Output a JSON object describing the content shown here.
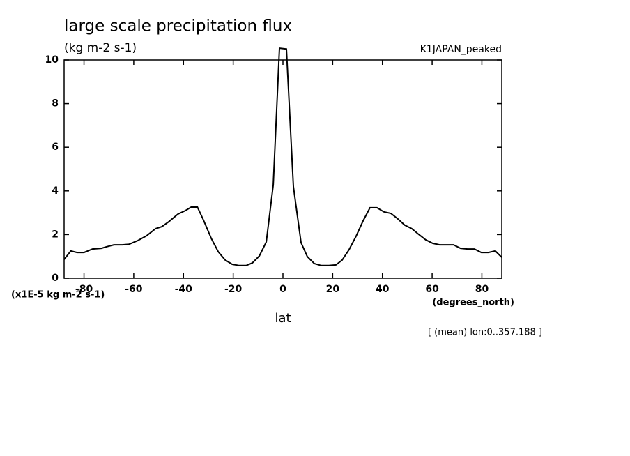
{
  "chart_data": {
    "type": "line",
    "title": "large scale precipitation flux",
    "subtitle": "(kg m-2 s-1)",
    "experiment": "K1JAPAN_peaked",
    "y_unit_label": "(x1E-5 kg m-2 s-1)",
    "x_unit_label": "(degrees_north)",
    "x_label": "lat",
    "annotation": "[ (mean) lon:0..357.188 ]",
    "color": "#000000",
    "xlim": [
      -88,
      88
    ],
    "ylim": [
      0,
      10
    ],
    "xticks": [
      -80,
      -60,
      -40,
      -20,
      0,
      20,
      40,
      60,
      80
    ],
    "yticks": [
      0,
      2,
      4,
      6,
      8,
      10
    ],
    "x": [
      -88,
      -85.3,
      -82.8,
      -80,
      -76.6,
      -73,
      -71,
      -68,
      -64.6,
      -61.8,
      -58.5,
      -54.8,
      -51.2,
      -48.7,
      -45.9,
      -42.2,
      -39.2,
      -36.9,
      -34.4,
      -31.9,
      -28.8,
      -26,
      -23.2,
      -20.4,
      -17.6,
      -14.8,
      -12.3,
      -9.5,
      -6.7,
      -3.9,
      -1.4,
      1.4,
      4.2,
      7.3,
      9.8,
      12.6,
      15.4,
      18.5,
      21.3,
      23.8,
      26.6,
      29.4,
      32.2,
      35,
      37.8,
      40.6,
      43.4,
      46.2,
      49,
      51.8,
      54.6,
      57.4,
      60.2,
      63,
      65.8,
      68.6,
      71.4,
      74.2,
      77,
      79.8,
      82.6,
      85.4,
      88
    ],
    "values": [
      0.86,
      1.25,
      1.18,
      1.18,
      1.34,
      1.37,
      1.44,
      1.53,
      1.53,
      1.56,
      1.72,
      1.95,
      2.27,
      2.36,
      2.59,
      2.94,
      3.1,
      3.26,
      3.26,
      2.65,
      1.82,
      1.21,
      0.83,
      0.64,
      0.58,
      0.58,
      0.7,
      1.02,
      1.66,
      4.28,
      10.54,
      10.5,
      4.2,
      1.63,
      0.99,
      0.67,
      0.58,
      0.58,
      0.61,
      0.83,
      1.31,
      1.92,
      2.62,
      3.23,
      3.23,
      3.04,
      2.97,
      2.72,
      2.43,
      2.27,
      2.01,
      1.76,
      1.6,
      1.53,
      1.53,
      1.53,
      1.37,
      1.34,
      1.34,
      1.18,
      1.18,
      1.25,
      0.96
    ]
  }
}
